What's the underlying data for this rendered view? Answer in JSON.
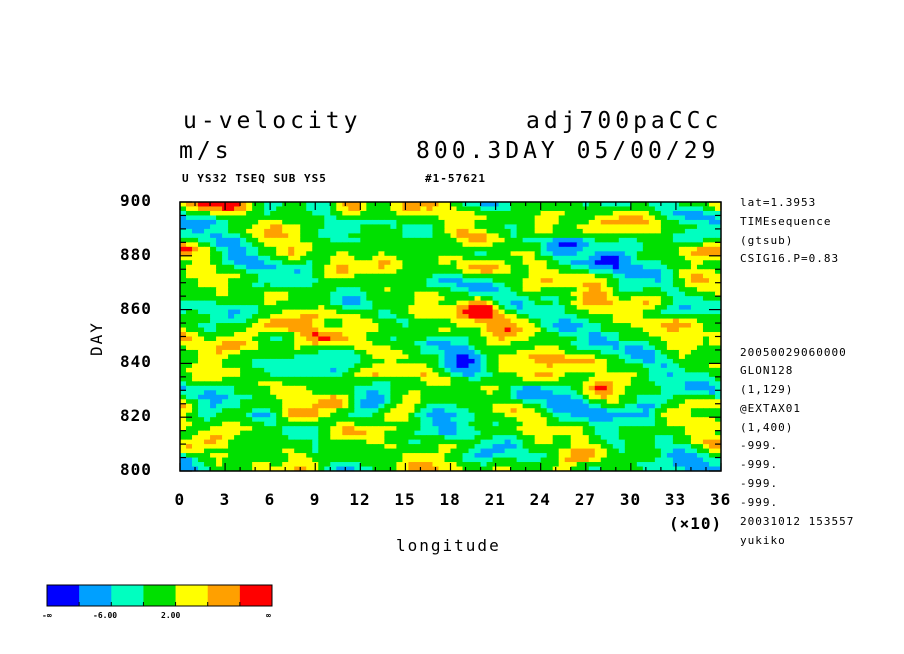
{
  "header": {
    "variable": "u-velocity",
    "experiment": "adj700paCCc",
    "units": "m/s",
    "time": "800.3DAY 05/00/29",
    "subtitle_left": "U YS32 TSEQ SUB YS5",
    "subtitle_right": "#1-57621"
  },
  "side_info": [
    "lat=1.3953",
    "TIMEsequence",
    "(gtsub)",
    "CSIG16.P=0.83",
    "20050029060000",
    "GLON128",
    "(1,129)",
    "@EXTAX01",
    "(1,400)",
    "-999.",
    "-999.",
    "-999.",
    "-999.",
    "20031012 153557",
    "yukiko"
  ],
  "x_scale_note": "(×10)",
  "colorbar": {
    "colors": [
      "#0000ff",
      "#00a0ff",
      "#00ffc0",
      "#00e000",
      "#ffff00",
      "#ffa000",
      "#ff0000"
    ],
    "labels": [
      "-∞",
      "-6.00",
      "2.00",
      "∞"
    ]
  },
  "chart_data": {
    "type": "heatmap",
    "title": "u-velocity",
    "xlabel": "longitude",
    "ylabel": "DAY",
    "xlim": [
      0,
      36
    ],
    "ylim": [
      800,
      900
    ],
    "x_ticks": [
      "0",
      "3",
      "6",
      "9",
      "12",
      "15",
      "18",
      "21",
      "24",
      "27",
      "30",
      "33",
      "36"
    ],
    "y_ticks": [
      "800",
      "820",
      "840",
      "860",
      "880",
      "900"
    ],
    "x_tick_values": [
      0,
      3,
      6,
      9,
      12,
      15,
      18,
      21,
      24,
      27,
      30,
      33,
      36
    ],
    "y_tick_values": [
      800,
      820,
      840,
      860,
      880,
      900
    ],
    "color_levels": [
      "-∞",
      "-6.00",
      "2.00",
      "∞"
    ],
    "dominant_level": "green (near 0 m/s)",
    "grid": false,
    "legend": "bottom-left colorbar"
  }
}
